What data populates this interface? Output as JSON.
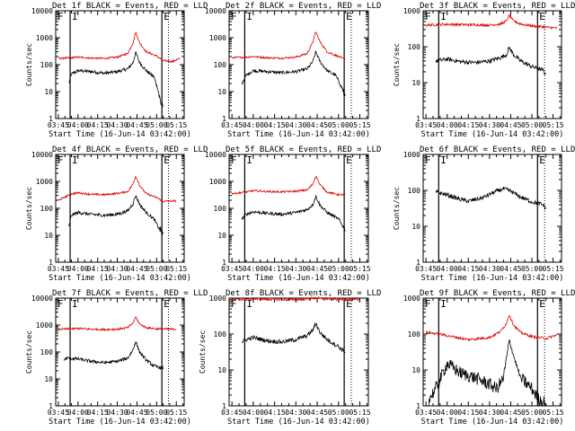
{
  "colors": {
    "events": "#000000",
    "lld": "#e00000",
    "axes": "#000000",
    "background": "#ffffff"
  },
  "chart_data": [
    {
      "type": "line",
      "title": "Det 1f BLACK = Events, RED = LLD",
      "xlabel": "Start Time (16-Jun-14 03:42:00)",
      "ylabel": "Counts/sec",
      "yscale": "log",
      "ylim": [
        1,
        10000
      ],
      "ytick_labels": [
        "1",
        "10",
        "100",
        "1000",
        "10000"
      ],
      "xtick_labels": [
        "03:45",
        "04:00",
        "04:15",
        "04:30",
        "04:45",
        "05:00",
        "05:15"
      ],
      "markers": [
        "F",
        "I",
        "E"
      ],
      "series": [
        {
          "name": "BLACK = Events",
          "x": [
            "03:53",
            "03:55",
            "04:00",
            "04:10",
            "04:20",
            "04:30",
            "04:38",
            "04:42",
            "04:44",
            "04:47",
            "04:52",
            "04:58",
            "05:01",
            "05:03",
            "05:05"
          ],
          "values": [
            20,
            45,
            60,
            55,
            48,
            55,
            70,
            120,
            280,
            120,
            60,
            35,
            12,
            4,
            3
          ]
        },
        {
          "name": "RED = LLD",
          "x": [
            "03:45",
            "03:55",
            "04:00",
            "04:10",
            "04:20",
            "04:30",
            "04:38",
            "04:42",
            "04:44",
            "04:47",
            "04:52",
            "05:00",
            "05:05",
            "05:12",
            "05:18"
          ],
          "values": [
            170,
            180,
            190,
            175,
            170,
            190,
            260,
            650,
            1600,
            650,
            300,
            210,
            140,
            130,
            170
          ]
        }
      ]
    },
    {
      "type": "line",
      "title": "Det 2f BLACK = Events, RED = LLD",
      "xlabel": "Start Time (16-Jun-14 03:42:00)",
      "ylabel": "",
      "yscale": "log",
      "ylim": [
        1,
        10000
      ],
      "ytick_labels": [
        "1",
        "10",
        "100",
        "1000",
        "10000"
      ],
      "xtick_labels": [
        "03:45",
        "04:00",
        "04:15",
        "04:30",
        "04:45",
        "05:00",
        "05:15"
      ],
      "markers": [
        "F",
        "I",
        "E"
      ],
      "series": [
        {
          "name": "BLACK = Events",
          "x": [
            "03:52",
            "03:55",
            "04:00",
            "04:10",
            "04:20",
            "04:30",
            "04:38",
            "04:42",
            "04:44",
            "04:47",
            "04:52",
            "04:58",
            "05:03",
            "05:05"
          ],
          "values": [
            20,
            40,
            60,
            55,
            50,
            55,
            70,
            130,
            300,
            130,
            60,
            40,
            12,
            5
          ]
        },
        {
          "name": "RED = LLD",
          "x": [
            "03:45",
            "03:55",
            "04:00",
            "04:10",
            "04:20",
            "04:30",
            "04:38",
            "04:42",
            "04:44",
            "04:47",
            "04:52",
            "05:00",
            "05:05"
          ],
          "values": [
            180,
            190,
            200,
            180,
            175,
            190,
            260,
            700,
            1700,
            700,
            300,
            200,
            150
          ]
        }
      ]
    },
    {
      "type": "line",
      "title": "Det 3f BLACK = Events, RED = LLD",
      "xlabel": "Start Time (16-Jun-14 03:42:00)",
      "ylabel": "Counts/sec",
      "yscale": "log",
      "ylim": [
        1,
        1000
      ],
      "ytick_labels": [
        "1",
        "10",
        "100",
        "1000"
      ],
      "xtick_labels": [
        "03:45",
        "04:00",
        "04:15",
        "04:30",
        "04:45",
        "05:00",
        "05:15"
      ],
      "markers": [
        "F",
        "I",
        "E"
      ],
      "series": [
        {
          "name": "BLACK = Events",
          "x": [
            "03:52",
            "04:00",
            "04:10",
            "04:20",
            "04:30",
            "04:38",
            "04:42",
            "04:44",
            "04:47",
            "04:52",
            "05:00",
            "05:08",
            "05:10"
          ],
          "values": [
            40,
            45,
            38,
            36,
            40,
            50,
            60,
            95,
            60,
            40,
            28,
            22,
            16
          ]
        },
        {
          "name": "RED = LLD",
          "x": [
            "03:45",
            "04:00",
            "04:15",
            "04:30",
            "04:38",
            "04:42",
            "04:44",
            "04:47",
            "04:52",
            "05:00",
            "05:10",
            "05:18"
          ],
          "values": [
            400,
            420,
            410,
            400,
            430,
            520,
            750,
            520,
            430,
            380,
            350,
            330
          ]
        }
      ]
    },
    {
      "type": "line",
      "title": "Det 4f BLACK = Events, RED = LLD",
      "xlabel": "Start Time (16-Jun-14 03:42:00)",
      "ylabel": "Counts/sec",
      "yscale": "log",
      "ylim": [
        1,
        10000
      ],
      "ytick_labels": [
        "1",
        "10",
        "100",
        "1000",
        "10000"
      ],
      "xtick_labels": [
        "03:45",
        "04:00",
        "04:15",
        "04:30",
        "04:45",
        "05:00",
        "05:15"
      ],
      "markers": [
        "F",
        "I",
        "E"
      ],
      "series": [
        {
          "name": "BLACK = Events",
          "x": [
            "03:53",
            "03:55",
            "04:00",
            "04:10",
            "04:20",
            "04:30",
            "04:38",
            "04:42",
            "04:44",
            "04:47",
            "04:52",
            "04:58",
            "05:03",
            "05:05"
          ],
          "values": [
            20,
            55,
            70,
            60,
            55,
            60,
            80,
            150,
            300,
            140,
            70,
            40,
            14,
            10
          ]
        },
        {
          "name": "RED = LLD",
          "x": [
            "03:45",
            "03:55",
            "04:00",
            "04:10",
            "04:20",
            "04:30",
            "04:38",
            "04:42",
            "04:44",
            "04:47",
            "04:52",
            "05:00",
            "05:05",
            "05:15"
          ],
          "values": [
            200,
            340,
            380,
            330,
            320,
            360,
            420,
            800,
            1600,
            700,
            350,
            250,
            180,
            190
          ]
        }
      ]
    },
    {
      "type": "line",
      "title": "Det 5f BLACK = Events, RED = LLD",
      "xlabel": "Start Time (16-Jun-14 03:42:00)",
      "ylabel": "",
      "yscale": "log",
      "ylim": [
        1,
        10000
      ],
      "ytick_labels": [
        "1",
        "10",
        "100",
        "1000",
        "10000"
      ],
      "xtick_labels": [
        "03:45",
        "04:00",
        "04:15",
        "04:30",
        "04:45",
        "05:00",
        "05:15"
      ],
      "markers": [
        "F",
        "I",
        "E"
      ],
      "series": [
        {
          "name": "BLACK = Events",
          "x": [
            "03:52",
            "03:55",
            "04:00",
            "04:10",
            "04:20",
            "04:30",
            "04:38",
            "04:42",
            "04:44",
            "04:47",
            "04:52",
            "05:00",
            "05:05"
          ],
          "values": [
            40,
            60,
            75,
            65,
            60,
            70,
            90,
            140,
            280,
            130,
            70,
            40,
            15
          ]
        },
        {
          "name": "RED = LLD",
          "x": [
            "03:45",
            "03:55",
            "04:00",
            "04:10",
            "04:20",
            "04:30",
            "04:38",
            "04:42",
            "04:44",
            "04:47",
            "04:52",
            "05:00",
            "05:05"
          ],
          "values": [
            350,
            400,
            450,
            420,
            410,
            430,
            480,
            800,
            1600,
            750,
            400,
            320,
            320
          ]
        }
      ]
    },
    {
      "type": "line",
      "title": "Det 6f BLACK = Events, RED = LLD",
      "xlabel": "Start Time (16-Jun-14 03:42:00)",
      "ylabel": "Counts/sec",
      "yscale": "log",
      "ylim": [
        1,
        1000
      ],
      "ytick_labels": [
        "1",
        "10",
        "100",
        "1000"
      ],
      "xtick_labels": [
        "03:45",
        "04:00",
        "04:15",
        "04:30",
        "04:45",
        "05:00",
        "05:15"
      ],
      "markers": [
        "F",
        "I",
        "E"
      ],
      "series": [
        {
          "name": "BLACK = Events",
          "x": [
            "03:52",
            "04:00",
            "04:08",
            "04:15",
            "04:25",
            "04:35",
            "04:40",
            "04:45",
            "04:52",
            "05:00",
            "05:08",
            "05:10"
          ],
          "values": [
            90,
            75,
            58,
            50,
            62,
            95,
            110,
            95,
            65,
            48,
            40,
            30
          ]
        }
      ]
    },
    {
      "type": "line",
      "title": "Det 7f BLACK = Events, RED = LLD",
      "xlabel": "Start Time (16-Jun-14 03:42:00)",
      "ylabel": "Counts/sec",
      "yscale": "log",
      "ylim": [
        1,
        10000
      ],
      "ytick_labels": [
        "1",
        "10",
        "100",
        "1000",
        "10000"
      ],
      "xtick_labels": [
        "03:45",
        "04:00",
        "04:15",
        "04:30",
        "04:45",
        "05:00",
        "05:15"
      ],
      "markers": [
        "F",
        "I",
        "E"
      ],
      "series": [
        {
          "name": "BLACK = Events",
          "x": [
            "03:49",
            "03:52",
            "04:00",
            "04:10",
            "04:20",
            "04:30",
            "04:38",
            "04:42",
            "04:44",
            "04:47",
            "04:52",
            "04:58",
            "05:05"
          ],
          "values": [
            50,
            60,
            55,
            45,
            40,
            45,
            60,
            120,
            250,
            100,
            50,
            30,
            25
          ]
        },
        {
          "name": "RED = LLD",
          "x": [
            "03:45",
            "03:55",
            "04:00",
            "04:10",
            "04:20",
            "04:30",
            "04:38",
            "04:42",
            "04:44",
            "04:47",
            "04:52",
            "05:00",
            "05:15"
          ],
          "values": [
            700,
            720,
            750,
            700,
            680,
            700,
            800,
            1200,
            2000,
            1100,
            800,
            720,
            700
          ]
        }
      ]
    },
    {
      "type": "line",
      "title": "Det 8f BLACK = Events, RED = LLD",
      "xlabel": "Start Time (16-Jun-14 03:42:00)",
      "ylabel": "Counts/sec",
      "yscale": "log",
      "ylim": [
        1,
        1000
      ],
      "ytick_labels": [
        "1",
        "10",
        "100",
        "1000"
      ],
      "xtick_labels": [
        "03:45",
        "04:00",
        "04:15",
        "04:30",
        "04:45",
        "05:00",
        "05:15"
      ],
      "markers": [
        "F",
        "I",
        "E"
      ],
      "series": [
        {
          "name": "BLACK = Events",
          "x": [
            "03:52",
            "03:55",
            "04:00",
            "04:10",
            "04:20",
            "04:30",
            "04:38",
            "04:42",
            "04:44",
            "04:47",
            "04:52",
            "05:00",
            "05:05"
          ],
          "values": [
            60,
            70,
            80,
            65,
            60,
            70,
            90,
            130,
            200,
            110,
            70,
            45,
            30
          ]
        },
        {
          "name": "RED = LLD",
          "x": [
            "03:45",
            "04:00",
            "04:15",
            "04:30",
            "04:44",
            "05:00",
            "05:15"
          ],
          "values": [
            900,
            950,
            920,
            900,
            1000,
            920,
            900
          ]
        }
      ]
    },
    {
      "type": "line",
      "title": "Det 9f BLACK = Events, RED = LLD",
      "xlabel": "Start Time (16-Jun-14 03:42:00)",
      "ylabel": "",
      "yscale": "log",
      "ylim": [
        1,
        1000
      ],
      "ytick_labels": [
        "1",
        "10",
        "100",
        "1000"
      ],
      "xtick_labels": [
        "03:45",
        "04:00",
        "04:15",
        "04:30",
        "04:45",
        "05:00",
        "05:15"
      ],
      "markers": [
        "F",
        "I",
        "E"
      ],
      "series": [
        {
          "name": "BLACK = Events",
          "x": [
            "03:47",
            "03:52",
            "04:00",
            "04:10",
            "04:20",
            "04:30",
            "04:35",
            "04:40",
            "04:42",
            "04:44",
            "04:47",
            "04:52",
            "05:00",
            "05:05",
            "05:10"
          ],
          "values": [
            1.5,
            3,
            15,
            8,
            6,
            4,
            3,
            6,
            20,
            70,
            25,
            6,
            3,
            1.5,
            1.2
          ]
        },
        {
          "name": "RED = LLD",
          "x": [
            "03:45",
            "03:55",
            "04:00",
            "04:15",
            "04:30",
            "04:38",
            "04:42",
            "04:44",
            "04:47",
            "04:52",
            "05:00",
            "05:10",
            "05:18"
          ],
          "values": [
            110,
            100,
            90,
            70,
            80,
            120,
            200,
            350,
            180,
            110,
            85,
            75,
            95
          ]
        }
      ]
    }
  ]
}
